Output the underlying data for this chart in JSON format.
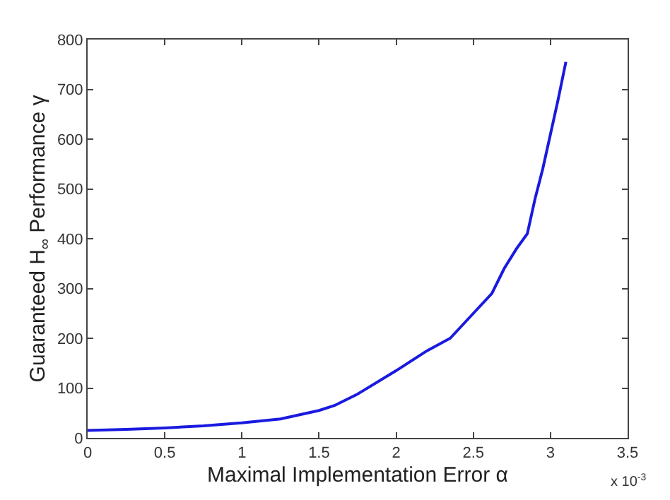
{
  "chart_data": {
    "type": "line",
    "xlabel": "Maximal Implementation Error α",
    "ylabel": "Guaranteed H$_{∞}$ Performance γ",
    "x": [
      0,
      0.25,
      0.5,
      0.75,
      1,
      1.25,
      1.5,
      1.6,
      1.75,
      2,
      2.2,
      2.35,
      2.5,
      2.62,
      2.7,
      2.78,
      2.85,
      2.9,
      2.95,
      3.0,
      3.05,
      3.1
    ],
    "series": [
      {
        "color": "#1a1adf",
        "values": [
          15,
          17,
          20,
          24,
          30,
          38,
          55,
          65,
          88,
          135,
          175,
          200,
          250,
          290,
          340,
          380,
          410,
          480,
          540,
          610,
          680,
          755
        ]
      }
    ],
    "xlim": [
      0,
      3.5
    ],
    "xticks": [
      0,
      0.5,
      1,
      1.5,
      2,
      2.5,
      3,
      3.5
    ],
    "ylim": [
      0,
      800
    ],
    "yticks": [
      0,
      100,
      200,
      300,
      400,
      500,
      600,
      700,
      800
    ],
    "annotations": [
      "x 10$^{-3}$"
    ],
    "marker": "none",
    "line_style": "solid"
  }
}
